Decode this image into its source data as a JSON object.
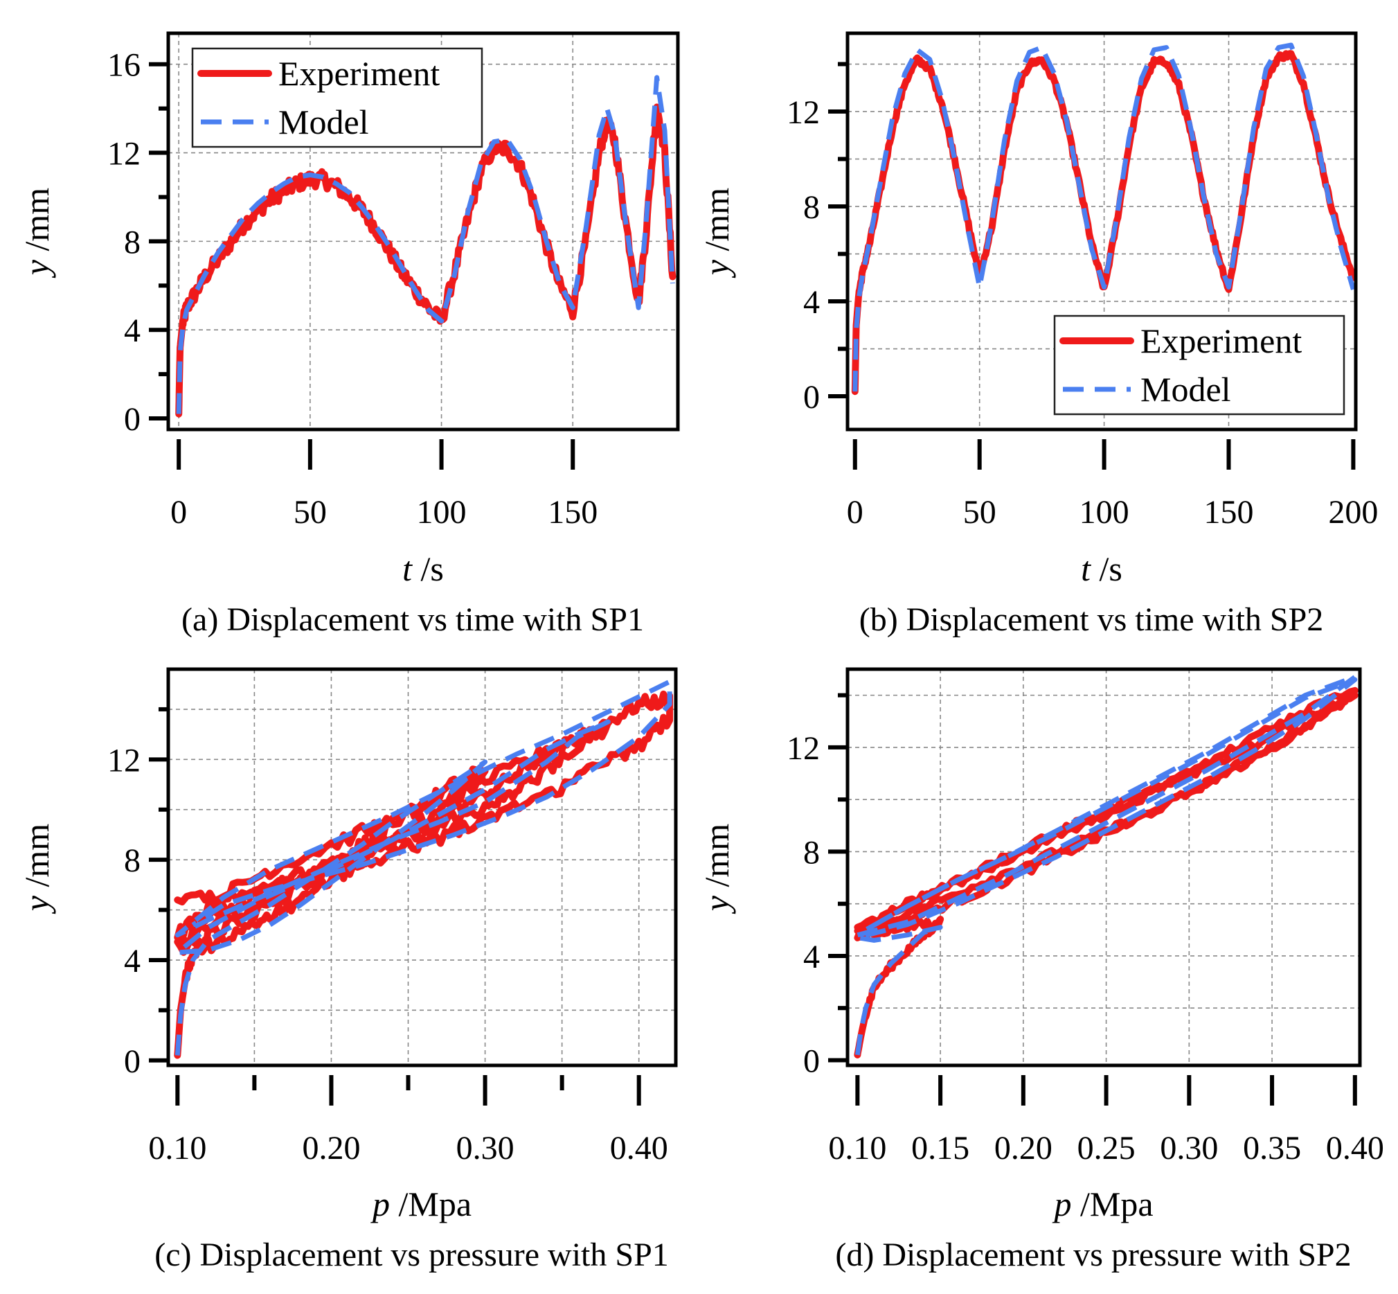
{
  "colors": {
    "experiment": "#ef1a1a",
    "model": "#4a7ff0"
  },
  "chart_data": [
    {
      "id": "a",
      "type": "line",
      "caption": "(a) Displacement vs time with SP1",
      "xlabel_var": "t",
      "xlabel_unit": " /s",
      "ylabel_var": "y",
      "ylabel_unit": " /mm",
      "xlim": [
        -4,
        190
      ],
      "ylim": [
        -0.5,
        17.4
      ],
      "xticks": [
        0,
        50,
        100,
        150
      ],
      "xtick_labels": [
        "0",
        "50",
        "100",
        "150"
      ],
      "xminor": [],
      "yticks": [
        0,
        4,
        8,
        12,
        16
      ],
      "ytick_labels": [
        "0",
        "4",
        "8",
        "12",
        "16"
      ],
      "yminor": [
        2,
        6,
        10,
        14
      ],
      "xgrid": [
        0,
        50,
        100,
        150
      ],
      "ygrid": [
        4,
        8,
        12,
        16
      ],
      "legend": {
        "position": "top-left",
        "entries": [
          "Experiment",
          "Model"
        ]
      },
      "series": [
        {
          "name": "Experiment",
          "noise": 0.35,
          "x": [
            0,
            0.5,
            1.5,
            3,
            6,
            10,
            15,
            20,
            25,
            30,
            35,
            40,
            45,
            50,
            55,
            60,
            65,
            70,
            75,
            80,
            85,
            90,
            95,
            100,
            105,
            110,
            115,
            120,
            125,
            130,
            135,
            140,
            145,
            150,
            155,
            160,
            163,
            166,
            170,
            175,
            178,
            182,
            185,
            188
          ],
          "y": [
            0.2,
            3.2,
            4.3,
            5.0,
            5.6,
            6.4,
            7.2,
            8.0,
            8.8,
            9.4,
            9.9,
            10.3,
            10.6,
            10.8,
            10.8,
            10.5,
            10.0,
            9.4,
            8.6,
            7.6,
            6.6,
            5.8,
            5.0,
            4.4,
            6.6,
            9.0,
            11.2,
            12.2,
            12.2,
            11.4,
            9.8,
            7.8,
            6.0,
            4.9,
            8.0,
            12.0,
            13.4,
            12.5,
            9.0,
            5.2,
            8.5,
            14.2,
            12.0,
            6.4
          ]
        },
        {
          "name": "Model",
          "noise": 0,
          "x": [
            0,
            0.5,
            1.5,
            3,
            6,
            10,
            15,
            20,
            25,
            30,
            35,
            40,
            45,
            50,
            55,
            60,
            65,
            70,
            75,
            80,
            85,
            90,
            95,
            100,
            105,
            110,
            115,
            120,
            125,
            130,
            135,
            140,
            145,
            150,
            155,
            160,
            163,
            166,
            170,
            175,
            178,
            182,
            185,
            188
          ],
          "y": [
            0.2,
            3.0,
            4.1,
            4.9,
            5.6,
            6.5,
            7.5,
            8.3,
            9.1,
            9.7,
            10.2,
            10.6,
            10.9,
            11.0,
            10.9,
            10.6,
            10.2,
            9.5,
            8.7,
            7.8,
            6.8,
            5.8,
            4.9,
            4.4,
            6.5,
            9.3,
            11.5,
            12.5,
            12.6,
            11.7,
            10.1,
            8.0,
            6.1,
            5.0,
            8.6,
            12.8,
            14.0,
            12.8,
            9.0,
            5.0,
            9.0,
            15.4,
            13.0,
            6.1
          ]
        }
      ]
    },
    {
      "id": "b",
      "type": "line",
      "caption": "(b) Displacement vs time with SP2",
      "xlabel_var": "t",
      "xlabel_unit": " /s",
      "ylabel_var": "y",
      "ylabel_unit": " /mm",
      "xlim": [
        -3,
        201
      ],
      "ylim": [
        -1.4,
        15.3
      ],
      "xticks": [
        0,
        50,
        100,
        150,
        200
      ],
      "xtick_labels": [
        "0",
        "50",
        "100",
        "150",
        "200"
      ],
      "xminor": [],
      "yticks": [
        0,
        4,
        8,
        12
      ],
      "ytick_labels": [
        "0",
        "4",
        "8",
        "12"
      ],
      "yminor": [
        2,
        6,
        10,
        14
      ],
      "xgrid": [
        50,
        100,
        150
      ],
      "ygrid": [
        2,
        4,
        6,
        8,
        10,
        12,
        14
      ],
      "legend": {
        "position": "bottom-right",
        "entries": [
          "Experiment",
          "Model"
        ]
      },
      "series": [
        {
          "name": "Experiment",
          "noise": 0.12,
          "x": [
            0,
            0.5,
            1.5,
            3,
            6,
            10,
            15,
            20,
            25,
            30,
            35,
            40,
            45,
            50,
            55,
            60,
            65,
            70,
            75,
            80,
            85,
            90,
            95,
            100,
            105,
            110,
            115,
            120,
            125,
            130,
            135,
            140,
            145,
            150,
            155,
            160,
            165,
            170,
            175,
            180,
            185,
            190,
            195,
            200
          ],
          "y": [
            0.2,
            3.0,
            4.3,
            5.2,
            6.5,
            8.6,
            11.3,
            13.2,
            14.2,
            13.8,
            12.3,
            10.0,
            7.5,
            5.0,
            7.2,
            10.4,
            12.9,
            14.0,
            14.2,
            13.3,
            11.5,
            9.0,
            6.4,
            4.5,
            7.3,
            10.6,
            13.0,
            14.1,
            14.1,
            13.1,
            11.0,
            8.4,
            6.2,
            4.5,
            7.6,
            11.0,
            13.4,
            14.3,
            14.4,
            13.2,
            10.9,
            8.5,
            6.6,
            5.0
          ]
        },
        {
          "name": "Model",
          "noise": 0,
          "x": [
            0,
            0.5,
            1.5,
            3,
            6,
            10,
            15,
            20,
            25,
            30,
            35,
            40,
            45,
            50,
            55,
            60,
            65,
            70,
            75,
            80,
            85,
            90,
            95,
            100,
            105,
            110,
            115,
            120,
            125,
            130,
            135,
            140,
            145,
            150,
            155,
            160,
            165,
            170,
            175,
            180,
            185,
            190,
            195,
            200
          ],
          "y": [
            0.2,
            2.8,
            4.1,
            5.1,
            6.6,
            8.9,
            11.7,
            13.6,
            14.6,
            14.2,
            12.5,
            10.0,
            7.2,
            4.6,
            7.4,
            10.8,
            13.3,
            14.5,
            14.7,
            13.6,
            11.6,
            8.9,
            6.2,
            4.6,
            7.5,
            10.9,
            13.4,
            14.6,
            14.7,
            13.5,
            11.2,
            8.4,
            6.0,
            4.6,
            7.8,
            11.3,
            13.8,
            14.7,
            14.8,
            13.5,
            11.1,
            8.4,
            6.3,
            4.5
          ]
        }
      ]
    },
    {
      "id": "c",
      "type": "line",
      "caption": "(c) Displacement vs pressure with SP1",
      "xlabel_var": "p",
      "xlabel_unit": " /Mpa",
      "ylabel_var": "y",
      "ylabel_unit": " /mm",
      "xlim": [
        0.094,
        0.424
      ],
      "ylim": [
        -0.2,
        15.6
      ],
      "xticks": [
        0.1,
        0.2,
        0.3,
        0.4
      ],
      "xtick_labels": [
        "0.10",
        "0.20",
        "0.30",
        "0.40"
      ],
      "xminor": [
        0.15,
        0.25,
        0.35
      ],
      "yticks": [
        0,
        4,
        8,
        12
      ],
      "ytick_labels": [
        "0",
        "4",
        "8",
        "12"
      ],
      "yminor": [
        2,
        6,
        10,
        14
      ],
      "xgrid": [
        0.15,
        0.2,
        0.25,
        0.3,
        0.35,
        0.4
      ],
      "ygrid": [
        2,
        4,
        6,
        8,
        10,
        12,
        14
      ],
      "legend": null,
      "series": [
        {
          "name": "Experiment",
          "noise": 0.28,
          "x": [
            0.1,
            0.102,
            0.105,
            0.11,
            0.12,
            0.14,
            0.16,
            0.18,
            0.2,
            0.22,
            0.24,
            0.26,
            0.28,
            0.3,
            0.28,
            0.26,
            0.24,
            0.22,
            0.2,
            0.18,
            0.16,
            0.14,
            0.12,
            0.1,
            0.12,
            0.15,
            0.18,
            0.21,
            0.24,
            0.27,
            0.3,
            0.32,
            0.34,
            0.36,
            0.38,
            0.36,
            0.34,
            0.32,
            0.3,
            0.27,
            0.24,
            0.21,
            0.18,
            0.15,
            0.12,
            0.1,
            0.13,
            0.16,
            0.2,
            0.24,
            0.28,
            0.32,
            0.35,
            0.38,
            0.4,
            0.42,
            0.42,
            0.4,
            0.37,
            0.34,
            0.31,
            0.28,
            0.25,
            0.22,
            0.19,
            0.16,
            0.13,
            0.1
          ],
          "y": [
            0.2,
            2.0,
            3.2,
            4.2,
            5.0,
            5.6,
            6.3,
            7.0,
            7.8,
            8.6,
            9.4,
            10.2,
            11.0,
            11.6,
            10.4,
            9.6,
            8.8,
            8.0,
            7.2,
            6.4,
            5.7,
            5.1,
            4.6,
            4.5,
            5.5,
            6.4,
            7.2,
            8.0,
            8.8,
            9.7,
            10.6,
            11.4,
            12.2,
            12.8,
            13.3,
            12.6,
            11.6,
            10.8,
            10.1,
            9.4,
            8.8,
            8.1,
            7.4,
            6.6,
            5.9,
            5.1,
            6.6,
            7.6,
            8.6,
            9.6,
            10.6,
            11.7,
            12.6,
            13.5,
            14.2,
            14.4,
            13.6,
            12.6,
            11.6,
            10.6,
            9.8,
            9.1,
            8.5,
            7.9,
            7.3,
            6.8,
            6.5,
            6.4
          ]
        },
        {
          "name": "Model",
          "noise": 0,
          "x": [
            0.1,
            0.102,
            0.105,
            0.11,
            0.12,
            0.14,
            0.16,
            0.18,
            0.2,
            0.22,
            0.24,
            0.26,
            0.28,
            0.3,
            0.28,
            0.26,
            0.24,
            0.22,
            0.2,
            0.18,
            0.16,
            0.14,
            0.12,
            0.1,
            0.12,
            0.15,
            0.18,
            0.21,
            0.24,
            0.27,
            0.3,
            0.32,
            0.34,
            0.36,
            0.38,
            0.36,
            0.34,
            0.32,
            0.3,
            0.27,
            0.24,
            0.21,
            0.18,
            0.15,
            0.12,
            0.1,
            0.13,
            0.16,
            0.2,
            0.24,
            0.28,
            0.32,
            0.35,
            0.38,
            0.4,
            0.42,
            0.42,
            0.4,
            0.37,
            0.34,
            0.31,
            0.28,
            0.25,
            0.22,
            0.19,
            0.16,
            0.13,
            0.11
          ],
          "y": [
            0.2,
            1.8,
            3.0,
            4.0,
            4.8,
            5.5,
            6.2,
            7.0,
            7.8,
            8.6,
            9.5,
            10.3,
            11.1,
            11.9,
            10.8,
            9.8,
            8.9,
            8.0,
            7.1,
            6.2,
            5.4,
            4.8,
            4.4,
            4.3,
            5.3,
            6.3,
            7.1,
            7.9,
            8.8,
            9.8,
            10.8,
            11.6,
            12.4,
            13.0,
            13.5,
            12.9,
            11.9,
            11.1,
            10.3,
            9.5,
            8.8,
            8.0,
            7.2,
            6.4,
            5.6,
            5.0,
            6.5,
            7.6,
            8.7,
            9.8,
            11.0,
            12.2,
            13.0,
            13.9,
            14.5,
            15.1,
            14.2,
            12.9,
            11.6,
            10.5,
            9.7,
            9.0,
            8.4,
            7.8,
            7.3,
            6.8,
            6.2,
            5.4
          ]
        }
      ]
    },
    {
      "id": "d",
      "type": "line",
      "caption": "(d) Displacement vs pressure with SP2",
      "xlabel_var": "p",
      "xlabel_unit": " /Mpa",
      "ylabel_var": "y",
      "ylabel_unit": " /mm",
      "xlim": [
        0.094,
        0.403
      ],
      "ylim": [
        -0.2,
        15.0
      ],
      "xticks": [
        0.1,
        0.15,
        0.2,
        0.25,
        0.3,
        0.35,
        0.4
      ],
      "xtick_labels": [
        "0.10",
        "0.15",
        "0.20",
        "0.25",
        "0.30",
        "0.35",
        "0.40"
      ],
      "xminor": [],
      "yticks": [
        0,
        4,
        8,
        12
      ],
      "ytick_labels": [
        "0",
        "4",
        "8",
        "12"
      ],
      "yminor": [
        2,
        6,
        10,
        14
      ],
      "xgrid": [
        0.15,
        0.2,
        0.25,
        0.3,
        0.35
      ],
      "ygrid": [
        2,
        4,
        6,
        8,
        10,
        12,
        14
      ],
      "legend": null,
      "series": [
        {
          "name": "Experiment",
          "noise": 0.14,
          "x": [
            0.1,
            0.102,
            0.105,
            0.11,
            0.12,
            0.13,
            0.14,
            0.15,
            0.13,
            0.11,
            0.1,
            0.13,
            0.16,
            0.19,
            0.22,
            0.25,
            0.28,
            0.31,
            0.34,
            0.37,
            0.4,
            0.37,
            0.34,
            0.31,
            0.28,
            0.25,
            0.22,
            0.19,
            0.16,
            0.13,
            0.1,
            0.13,
            0.16,
            0.19,
            0.22,
            0.25,
            0.28,
            0.31,
            0.34,
            0.37,
            0.4,
            0.37,
            0.34,
            0.31,
            0.28,
            0.25,
            0.22,
            0.19,
            0.16,
            0.13,
            0.1
          ],
          "y": [
            0.2,
            0.9,
            1.8,
            2.8,
            3.6,
            4.2,
            4.8,
            5.3,
            5.1,
            4.9,
            4.8,
            5.4,
            6.1,
            6.9,
            7.8,
            8.7,
            9.6,
            10.6,
            11.7,
            12.8,
            14.0,
            13.2,
            12.1,
            11.2,
            10.3,
            9.4,
            8.6,
            7.7,
            6.8,
            5.9,
            5.0,
            5.6,
            6.4,
            7.2,
            8.0,
            8.8,
            9.6,
            10.6,
            11.6,
            12.7,
            14.2,
            13.4,
            12.4,
            11.4,
            10.5,
            9.6,
            8.7,
            7.8,
            6.9,
            6.0,
            5.1
          ]
        },
        {
          "name": "Model",
          "noise": 0,
          "x": [
            0.1,
            0.102,
            0.105,
            0.11,
            0.12,
            0.13,
            0.14,
            0.15,
            0.13,
            0.11,
            0.1,
            0.13,
            0.16,
            0.19,
            0.22,
            0.25,
            0.28,
            0.31,
            0.34,
            0.37,
            0.4,
            0.37,
            0.34,
            0.31,
            0.28,
            0.25,
            0.22,
            0.19,
            0.16,
            0.13,
            0.105,
            0.1,
            0.13,
            0.16,
            0.19,
            0.22,
            0.25,
            0.28,
            0.31,
            0.34,
            0.37,
            0.4,
            0.37,
            0.34,
            0.31,
            0.28,
            0.25,
            0.22,
            0.19,
            0.16,
            0.13,
            0.105
          ],
          "y": [
            0.2,
            1.1,
            2.0,
            2.9,
            3.7,
            4.3,
            4.9,
            5.1,
            4.8,
            4.6,
            4.7,
            5.2,
            6.0,
            6.9,
            7.8,
            8.8,
            9.8,
            10.8,
            11.9,
            13.1,
            14.6,
            13.9,
            12.8,
            11.7,
            10.7,
            9.7,
            8.7,
            7.8,
            6.9,
            5.9,
            5.0,
            4.8,
            5.3,
            6.2,
            7.1,
            8.1,
            9.1,
            10.1,
            11.1,
            12.2,
            13.3,
            14.7,
            14.0,
            12.9,
            11.8,
            10.8,
            9.8,
            8.8,
            7.8,
            6.9,
            5.9,
            5.0
          ]
        }
      ]
    }
  ]
}
